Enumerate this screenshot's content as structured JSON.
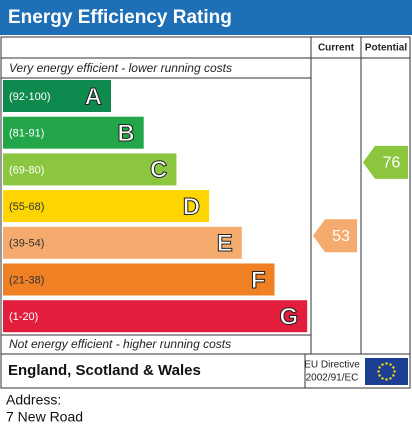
{
  "header": {
    "title": "Energy Efficiency Rating"
  },
  "columns": {
    "current": "Current",
    "potential": "Potential"
  },
  "top_note": "Very energy efficient - lower running costs",
  "bands": [
    {
      "range": "(92-100)",
      "letter": "A",
      "color": "#0f8a4f"
    },
    {
      "range": "(81-91)",
      "letter": "B",
      "color": "#23a64a"
    },
    {
      "range": "(69-80)",
      "letter": "C",
      "color": "#8cc63f"
    },
    {
      "range": "(55-68)",
      "letter": "D",
      "color": "#ffd500"
    },
    {
      "range": "(39-54)",
      "letter": "E",
      "color": "#f4ab6d"
    },
    {
      "range": "(21-38)",
      "letter": "F",
      "color": "#ef8023"
    },
    {
      "range": "(1-20)",
      "letter": "G",
      "color": "#e31d3c"
    }
  ],
  "bottom_note": "Not energy efficient - higher running costs",
  "current": {
    "value": 53
  },
  "potential": {
    "value": 76
  },
  "footer": {
    "region": "England, Scotland & Wales",
    "directive": [
      "EU Directive",
      "2002/91/EC"
    ]
  },
  "address": {
    "label": "Address:",
    "line": "7 New Road"
  }
}
